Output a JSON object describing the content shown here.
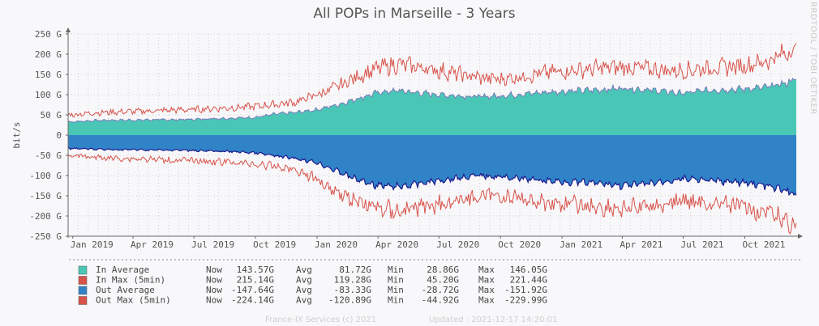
{
  "title": "All POPs in Marseille - 3 Years",
  "watermark": "RRDTOOL / TOBI OETIKER",
  "footer": {
    "copyright": "France-IX Services (c) 2021",
    "updated": "Updated : 2021-12-17 14:20:01"
  },
  "chart_data": {
    "type": "area",
    "title": "All POPs in Marseille - 3 Years",
    "ylabel": "bit/s",
    "ylim": [
      -250,
      250
    ],
    "y_unit": "G",
    "y_ticks": [
      {
        "value": 250,
        "label": "250 G"
      },
      {
        "value": 200,
        "label": "200 G"
      },
      {
        "value": 150,
        "label": "150 G"
      },
      {
        "value": 100,
        "label": "100 G"
      },
      {
        "value": 50,
        "label": "50 G"
      },
      {
        "value": 0,
        "label": "0"
      },
      {
        "value": -50,
        "label": "-50 G"
      },
      {
        "value": -100,
        "label": "-100 G"
      },
      {
        "value": -150,
        "label": "-150 G"
      },
      {
        "value": -200,
        "label": "-200 G"
      },
      {
        "value": -250,
        "label": "-250 G"
      }
    ],
    "x_range": [
      "2018-12-25",
      "2021-12-17"
    ],
    "x_ticks": [
      "Jan 2019",
      "Apr 2019",
      "Jul 2019",
      "Oct 2019",
      "Jan 2020",
      "Apr 2020",
      "Jul 2020",
      "Oct 2020",
      "Jan 2021",
      "Apr 2021",
      "Jul 2021",
      "Oct 2021"
    ],
    "x_tick_dates": [
      "2019-01-01",
      "2019-04-01",
      "2019-07-01",
      "2019-10-01",
      "2020-01-01",
      "2020-04-01",
      "2020-07-01",
      "2020-10-01",
      "2021-01-01",
      "2021-04-01",
      "2021-07-01",
      "2021-10-01"
    ],
    "grid": true,
    "x": [
      "2019-01-01",
      "2019-02-01",
      "2019-03-01",
      "2019-04-01",
      "2019-05-01",
      "2019-06-01",
      "2019-07-01",
      "2019-08-01",
      "2019-09-01",
      "2019-10-01",
      "2019-11-01",
      "2019-12-01",
      "2020-01-01",
      "2020-02-01",
      "2020-03-01",
      "2020-04-01",
      "2020-05-01",
      "2020-06-01",
      "2020-07-01",
      "2020-08-01",
      "2020-09-01",
      "2020-10-01",
      "2020-11-01",
      "2020-12-01",
      "2021-01-01",
      "2021-02-01",
      "2021-03-01",
      "2021-04-01",
      "2021-05-01",
      "2021-06-01",
      "2021-07-01",
      "2021-08-01",
      "2021-09-01",
      "2021-10-01",
      "2021-11-01",
      "2021-12-01",
      "2021-12-17"
    ],
    "series": [
      {
        "name": "In Average",
        "color": "#4ac6b7",
        "kind": "area",
        "values": [
          33,
          36,
          37,
          37,
          38,
          38,
          39,
          41,
          42,
          44,
          52,
          56,
          63,
          75,
          90,
          105,
          110,
          104,
          100,
          97,
          95,
          97,
          101,
          105,
          108,
          110,
          112,
          116,
          113,
          108,
          103,
          110,
          112,
          114,
          118,
          128,
          140
        ]
      },
      {
        "name": "In Max (5min)",
        "color": "#d8524a",
        "kind": "line",
        "values": [
          50,
          55,
          57,
          58,
          60,
          62,
          63,
          66,
          68,
          71,
          76,
          82,
          100,
          120,
          145,
          165,
          175,
          168,
          160,
          150,
          142,
          138,
          145,
          152,
          158,
          162,
          166,
          168,
          165,
          160,
          160,
          165,
          168,
          172,
          182,
          202,
          215
        ]
      },
      {
        "name": "Out Average",
        "color": "#3183c8",
        "kind": "area",
        "values": [
          -33,
          -35,
          -36,
          -36,
          -37,
          -37,
          -38,
          -40,
          -41,
          -44,
          -52,
          -58,
          -68,
          -90,
          -110,
          -125,
          -128,
          -120,
          -112,
          -105,
          -100,
          -103,
          -108,
          -112,
          -115,
          -117,
          -120,
          -125,
          -122,
          -115,
          -108,
          -112,
          -115,
          -118,
          -125,
          -138,
          -148
        ]
      },
      {
        "name": "Out Max (5min)",
        "color": "#d8524a",
        "kind": "line",
        "values": [
          -50,
          -55,
          -57,
          -58,
          -60,
          -62,
          -63,
          -66,
          -68,
          -72,
          -78,
          -86,
          -110,
          -140,
          -165,
          -180,
          -188,
          -178,
          -170,
          -160,
          -152,
          -150,
          -158,
          -165,
          -170,
          -175,
          -178,
          -182,
          -178,
          -170,
          -162,
          -168,
          -172,
          -178,
          -192,
          -210,
          -224
        ]
      }
    ],
    "legend": [
      {
        "name": "In Average",
        "color": "#4ac6b7",
        "now_label": "Now",
        "now": "143.57G",
        "avg_label": "Avg",
        "avg": "81.72G",
        "min_label": "Min",
        "min": "28.86G",
        "max_label": "Max",
        "max": "146.05G"
      },
      {
        "name": "In Max (5min)",
        "color": "#d8524a",
        "now_label": "Now",
        "now": "215.14G",
        "avg_label": "Avg",
        "avg": "119.28G",
        "min_label": "Min",
        "min": "45.20G",
        "max_label": "Max",
        "max": "221.44G"
      },
      {
        "name": "Out Average",
        "color": "#3183c8",
        "now_label": "Now",
        "now": "-147.64G",
        "avg_label": "Avg",
        "avg": "-83.33G",
        "min_label": "Min",
        "min": "-28.72G",
        "max_label": "Max",
        "max": "-151.92G"
      },
      {
        "name": "Out Max (5min)",
        "color": "#d8524a",
        "now_label": "Now",
        "now": "-224.14G",
        "avg_label": "Avg",
        "avg": "-120.89G",
        "min_label": "Min",
        "min": "-44.92G",
        "max_label": "Max",
        "max": "-229.99G"
      }
    ],
    "legend_placement": "bottom",
    "colors": {
      "background": "#f8f8fa",
      "grid": "#d2d2d2",
      "axis": "#666666",
      "out_avg_border": "#1a1a8c",
      "in_avg_border": "#7a7ab8"
    }
  }
}
